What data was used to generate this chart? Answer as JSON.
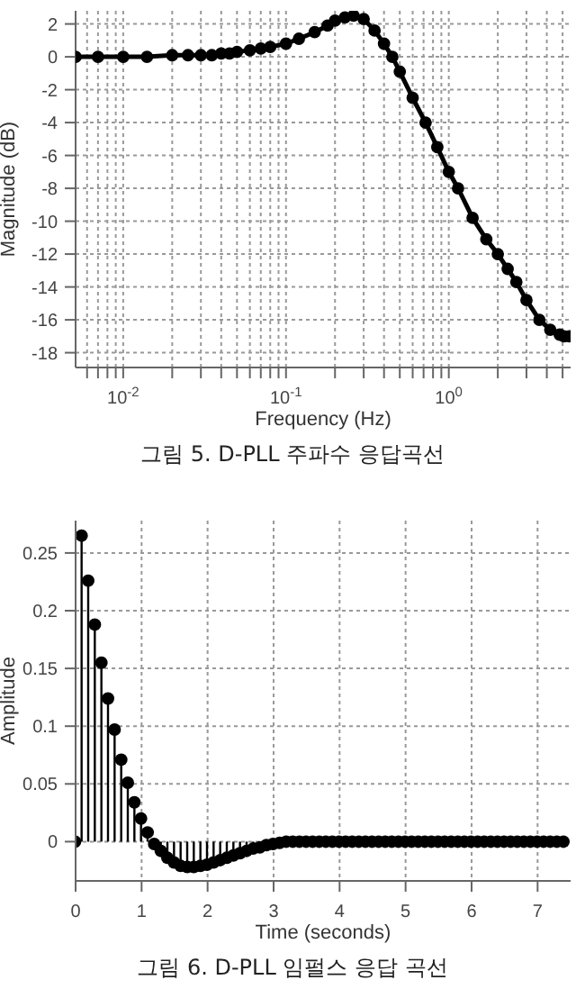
{
  "chart_data": [
    {
      "type": "line",
      "title": "그림 5. D-PLL 주파수 응답곡선",
      "xlabel": "Frequency (Hz)",
      "ylabel": "Magnitude (dB)",
      "log": "x",
      "grid": true,
      "marker": "circle",
      "line_style": "solid",
      "xlim": [
        0.0051,
        5.6
      ],
      "ylim": [
        -18.9,
        2.8
      ],
      "xticks": [
        {
          "value": 0.006,
          "label": null
        },
        {
          "value": 0.007,
          "label": null
        },
        {
          "value": 0.008,
          "label": null
        },
        {
          "value": 0.009,
          "label": null
        },
        {
          "value": 0.01,
          "label": "10$^{-2}$"
        },
        {
          "value": 0.02,
          "label": null
        },
        {
          "value": 0.03,
          "label": null
        },
        {
          "value": 0.04,
          "label": null
        },
        {
          "value": 0.05,
          "label": null
        },
        {
          "value": 0.06,
          "label": null
        },
        {
          "value": 0.07,
          "label": null
        },
        {
          "value": 0.08,
          "label": null
        },
        {
          "value": 0.09,
          "label": null
        },
        {
          "value": 0.1,
          "label": "10$^{-1}$"
        },
        {
          "value": 0.2,
          "label": null
        },
        {
          "value": 0.3,
          "label": null
        },
        {
          "value": 0.4,
          "label": null
        },
        {
          "value": 0.5,
          "label": null
        },
        {
          "value": 0.6,
          "label": null
        },
        {
          "value": 0.7,
          "label": null
        },
        {
          "value": 0.8,
          "label": null
        },
        {
          "value": 0.9,
          "label": null
        },
        {
          "value": 1,
          "label": "10$^{0}$"
        },
        {
          "value": 2,
          "label": null
        },
        {
          "value": 3,
          "label": null
        },
        {
          "value": 4,
          "label": null
        },
        {
          "value": 5,
          "label": null
        }
      ],
      "yticks": [
        -18,
        -16,
        -14,
        -12,
        -10,
        -8,
        -6,
        -4,
        -2,
        0,
        2
      ],
      "x": [
        0.0051,
        0.007,
        0.01,
        0.014,
        0.02,
        0.025,
        0.03,
        0.035,
        0.04,
        0.045,
        0.05,
        0.06,
        0.07,
        0.08,
        0.1,
        0.12,
        0.15,
        0.18,
        0.2,
        0.23,
        0.26,
        0.3,
        0.35,
        0.4,
        0.45,
        0.5,
        0.6,
        0.72,
        0.85,
        1,
        1.14,
        1.4,
        1.7,
        2,
        2.3,
        2.6,
        3,
        3.6,
        4.2,
        4.8,
        5.1,
        5.5
      ],
      "series": [
        {
          "color": "#000000",
          "values": [
            0,
            0,
            0,
            0,
            0.1,
            0.1,
            0.1,
            0.1,
            0.2,
            0.2,
            0.3,
            0.4,
            0.5,
            0.6,
            0.8,
            1.1,
            1.5,
            1.9,
            2.2,
            2.4,
            2.5,
            2.3,
            1.6,
            0.8,
            0,
            -0.9,
            -2.5,
            -4,
            -5.5,
            -7,
            -8,
            -9.8,
            -11.1,
            -12,
            -12.9,
            -13.7,
            -14.8,
            -16,
            -16.6,
            -16.9,
            -17,
            -17
          ]
        }
      ]
    },
    {
      "type": "lollipop",
      "title": "그림 6. D-PLL 임펄스 응답 곡선",
      "xlabel": "Time (seconds)",
      "ylabel": "Amplitude",
      "grid": true,
      "marker": "circle",
      "xlim": [
        0,
        7.5
      ],
      "ylim": [
        -0.034,
        0.278
      ],
      "xticks": [
        0,
        1,
        2,
        3,
        4,
        5,
        6,
        7
      ],
      "yticks": [
        0,
        0.05,
        0.1,
        0.15,
        0.2,
        0.25
      ],
      "x": [
        0,
        0.1,
        0.2,
        0.3,
        0.4,
        0.5,
        0.6,
        0.7,
        0.8,
        0.9,
        1,
        1.1,
        1.2,
        1.3,
        1.4,
        1.5,
        1.6,
        1.7,
        1.8,
        1.9,
        2,
        2.1,
        2.2,
        2.3,
        2.4,
        2.5,
        2.6,
        2.7,
        2.8,
        2.9,
        3,
        3.1,
        3.2,
        3.3,
        3.4,
        3.5,
        3.6,
        3.7,
        3.8,
        3.9,
        4,
        4.1,
        4.2,
        4.3,
        4.4,
        4.5,
        4.6,
        4.7,
        4.8,
        4.9,
        5,
        5.1,
        5.2,
        5.3,
        5.4,
        5.5,
        5.6,
        5.7,
        5.8,
        5.9,
        6,
        6.1,
        6.2,
        6.3,
        6.4,
        6.5,
        6.6,
        6.7,
        6.8,
        6.9,
        7,
        7.1,
        7.2,
        7.3,
        7.4
      ],
      "series": [
        {
          "color": "#000000",
          "values": [
            0,
            0.265,
            0.226,
            0.188,
            0.155,
            0.124,
            0.097,
            0.071,
            0.051,
            0.034,
            0.02,
            0.008,
            -0.002,
            -0.008,
            -0.014,
            -0.018,
            -0.021,
            -0.022,
            -0.022,
            -0.021,
            -0.02,
            -0.018,
            -0.016,
            -0.014,
            -0.012,
            -0.01,
            -0.008,
            -0.006,
            -0.005,
            -0.003,
            -0.002,
            -0.001,
            0,
            0,
            0,
            0,
            0,
            0,
            0,
            0,
            0,
            0,
            0,
            0,
            0,
            0,
            0,
            0,
            0,
            0,
            0,
            0,
            0,
            0,
            0,
            0,
            0,
            0,
            0,
            0,
            0,
            0,
            0,
            0,
            0,
            0,
            0,
            0,
            0,
            0,
            0,
            0,
            0,
            0,
            0
          ]
        }
      ]
    }
  ]
}
